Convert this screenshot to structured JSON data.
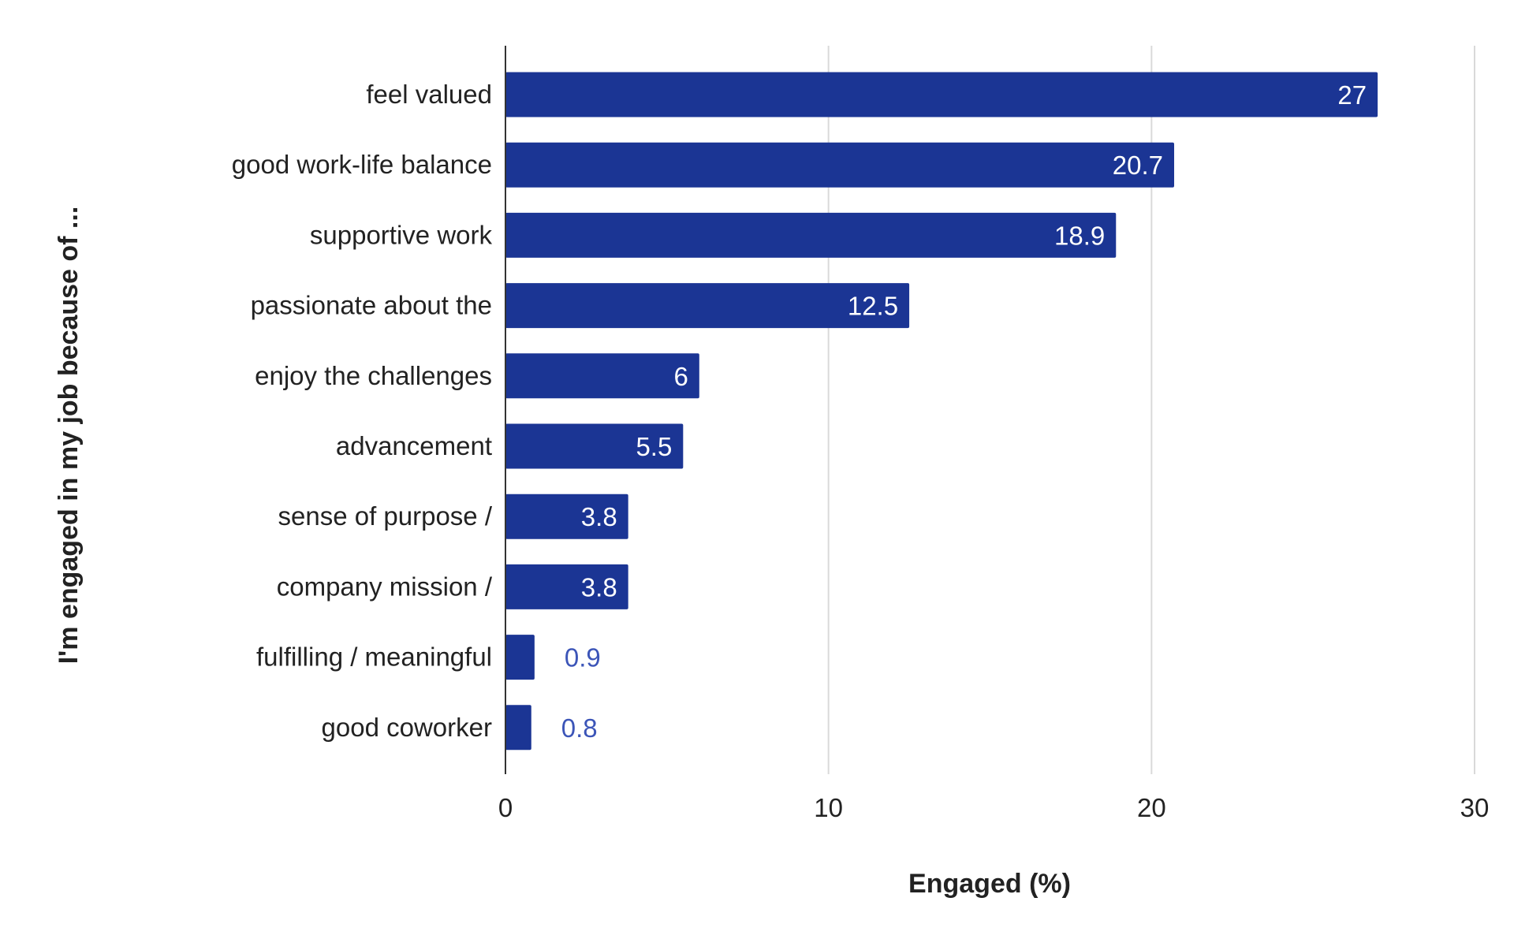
{
  "chart_data": {
    "type": "bar",
    "orientation": "horizontal",
    "categories": [
      "feel valued",
      "good work-life balance",
      "supportive work",
      "passionate about the",
      "enjoy the challenges",
      "advancement",
      "sense of purpose /",
      "company mission /",
      "fulfilling / meaningful",
      "good coworker"
    ],
    "values": [
      27,
      20.7,
      18.9,
      12.5,
      6,
      5.5,
      3.8,
      3.8,
      0.9,
      0.8
    ],
    "data_labels": [
      "27",
      "20.7",
      "18.9",
      "12.5",
      "6",
      "5.5",
      "3.8",
      "3.8",
      "0.9",
      "0.8"
    ],
    "xlabel": "Engaged (%)",
    "ylabel": "I'm engaged in my job because of ...",
    "xlim": [
      0,
      30
    ],
    "xticks": [
      "0",
      "10",
      "20",
      "30"
    ],
    "grid": true,
    "legend": "none",
    "colors": {
      "bar": "#1b3594",
      "label_inside": "#ffffff",
      "label_outside": "#3c55b8",
      "grid": "#d9d9d9",
      "axis": "#333333"
    }
  }
}
